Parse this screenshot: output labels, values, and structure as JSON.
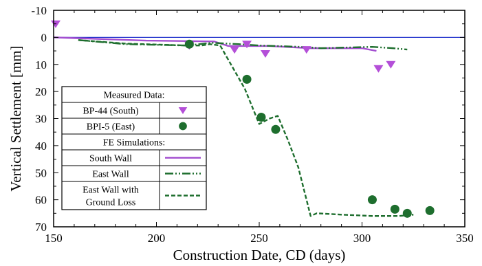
{
  "chart_data": {
    "type": "line",
    "xlabel": "Construction Date, CD (days)",
    "ylabel": "Vertical Settlement [mm]",
    "xlim": [
      150,
      350
    ],
    "ylim": [
      -10,
      70
    ],
    "y_inverted": true,
    "x_ticks": [
      150,
      200,
      250,
      300,
      350
    ],
    "x_tick_labels": [
      "150",
      "200",
      "250",
      "300",
      "350"
    ],
    "y_ticks": [
      -10,
      0,
      10,
      20,
      30,
      40,
      50,
      60,
      70
    ],
    "y_tick_labels": [
      "-10",
      "0",
      "10",
      "20",
      "30",
      "40",
      "50",
      "60",
      "70"
    ],
    "zero_line": 0,
    "grid": false,
    "legend_position": "left",
    "legend": {
      "measured_header": "Measured Data:",
      "fe_header": "FE Simulations:",
      "entries": [
        {
          "label": "BP-44 (South)",
          "series": 0
        },
        {
          "label": "BPI-5 (East)",
          "series": 1
        },
        {
          "label": "South Wall",
          "series": 2
        },
        {
          "label": "East Wall",
          "series": 3
        },
        {
          "label_lines": [
            "East Wall with",
            "Ground Loss"
          ],
          "series": 4
        }
      ]
    },
    "series": [
      {
        "name": "BP-44 (South)",
        "kind": "scatter",
        "marker": "triangle-down",
        "color": "#b44fd8",
        "x": [
          151,
          216,
          238,
          244,
          253,
          273,
          308,
          314
        ],
        "y": [
          -5,
          3,
          4.5,
          2.5,
          6,
          4.5,
          11.5,
          10
        ]
      },
      {
        "name": "BPI-5 (East)",
        "kind": "scatter",
        "marker": "circle",
        "color": "#1e6e2e",
        "x": [
          216,
          244,
          251,
          258,
          305,
          316,
          322,
          333
        ],
        "y": [
          2.5,
          15.5,
          29.5,
          34,
          60,
          63.5,
          65,
          64
        ]
      },
      {
        "name": "South Wall",
        "kind": "line",
        "dash": "solid",
        "color": "#a34fd0",
        "x": [
          150,
          195,
          228,
          235,
          255,
          275,
          300,
          307
        ],
        "y": [
          0,
          1.2,
          1.5,
          3.2,
          3.2,
          4,
          4,
          5
        ]
      },
      {
        "name": "East Wall",
        "kind": "line",
        "dash": "dashdotdot",
        "color": "#1e6e2e",
        "x": [
          162,
          185,
          215,
          227,
          240,
          250,
          270,
          280,
          305,
          315,
          322
        ],
        "y": [
          1,
          2.5,
          3,
          2,
          2.5,
          3,
          3.5,
          4,
          3.5,
          4,
          4.5
        ]
      },
      {
        "name": "East Wall with Ground Loss",
        "kind": "line",
        "dash": "dashed",
        "color": "#1e6e2e",
        "x": [
          162,
          185,
          215,
          222,
          226,
          231,
          243,
          250,
          255,
          259,
          264,
          269,
          275,
          278,
          290,
          305,
          318,
          325
        ],
        "y": [
          1,
          2.3,
          3,
          3,
          2.5,
          3,
          19,
          32,
          30,
          29,
          38,
          48,
          66,
          65,
          65.5,
          66,
          66,
          65.5
        ]
      }
    ]
  }
}
